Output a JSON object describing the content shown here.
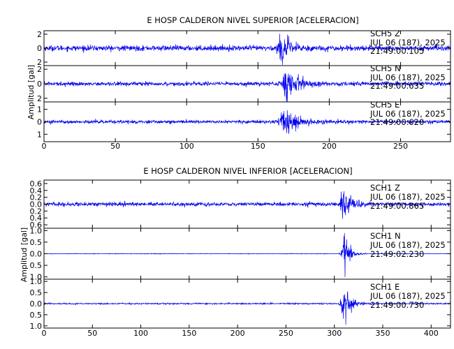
{
  "colors": {
    "trace": "#0000ee",
    "axes": "#000000",
    "background": "#ffffff"
  },
  "chart_data": [
    {
      "type": "line",
      "title": "E HOSP CALDERON NIVEL SUPERIOR [ACELERACION]",
      "ylabel": "Amplitud [gal]",
      "xlim": [
        0,
        285
      ],
      "xticks": [
        "0",
        "50",
        "100",
        "150",
        "200",
        "250"
      ],
      "xtick_values": [
        0,
        50,
        100,
        150,
        200,
        250
      ],
      "grid": false,
      "series": [
        {
          "name": "SCH5 Z",
          "label": [
            "SCH5   Z",
            "JUL 06 (187), 2025",
            "21:49:00.105"
          ],
          "ylim": [
            -2.5,
            2.5
          ],
          "ytick_values": [
            2,
            0,
            -2
          ],
          "yticks": [
            "2",
            "0",
            "2"
          ],
          "noise": 0.35,
          "events": [
            {
              "t": 167,
              "peak": 1.8,
              "width": 6
            }
          ]
        },
        {
          "name": "SCH5 N",
          "label": [
            "SCH5   N",
            "JUL 06 (187), 2025",
            "21:49:00.635"
          ],
          "ylim": [
            -2.5,
            2.5
          ],
          "ytick_values": [
            2,
            0,
            -2
          ],
          "yticks": [
            "2",
            "0",
            "2"
          ],
          "noise": 0.25,
          "events": [
            {
              "t": 170,
              "peak": 2.3,
              "width": 7
            }
          ]
        },
        {
          "name": "SCH5 E",
          "label": [
            "SCH5   E",
            "JUL 06 (187), 2025",
            "21:49:00.620"
          ],
          "ylim": [
            -1.6,
            1.6
          ],
          "ytick_values": [
            1,
            0,
            -1
          ],
          "yticks": [
            "1",
            "0",
            "1"
          ],
          "noise": 0.12,
          "events": [
            {
              "t": 168,
              "peak": 1.3,
              "width": 8
            }
          ]
        }
      ]
    },
    {
      "type": "line",
      "title": "E HOSP CALDERON NIVEL INFERIOR [ACELERACION]",
      "ylabel": "Amplitud [gal]",
      "xlim": [
        0,
        420
      ],
      "xticks": [
        "0",
        "50",
        "100",
        "150",
        "200",
        "250",
        "300",
        "350",
        "400"
      ],
      "xtick_values": [
        0,
        50,
        100,
        150,
        200,
        250,
        300,
        350,
        400
      ],
      "grid": false,
      "series": [
        {
          "name": "SCH1 Z",
          "label": [
            "SCH1   Z",
            "JUL 06 (187), 2025",
            "21:49:00.865"
          ],
          "ylim": [
            -0.7,
            0.7
          ],
          "ytick_values": [
            0.6,
            0.4,
            0.2,
            0,
            -0.2,
            -0.4,
            -0.6
          ],
          "yticks": [
            "0.6",
            "0.4",
            "0.2",
            "0.0",
            "0.2",
            "0.4",
            "0.6"
          ],
          "noise": 0.05,
          "events": [
            {
              "t": 310,
              "peak": 0.6,
              "width": 6
            }
          ]
        },
        {
          "name": "SCH1 N",
          "label": [
            "SCH1   N",
            "JUL 06 (187), 2025",
            "21:49:02.230"
          ],
          "ylim": [
            -1.1,
            1.1
          ],
          "ytick_values": [
            1.0,
            0.5,
            0,
            -0.5,
            -1.0
          ],
          "yticks": [
            "1.0",
            "0.5",
            "0.0",
            "0.5",
            "1.0"
          ],
          "noise": 0.012,
          "events": [
            {
              "t": 311,
              "peak": 0.95,
              "width": 5
            }
          ]
        },
        {
          "name": "SCH1 E",
          "label": [
            "SCH1   E",
            "JUL 06 (187), 2025",
            "21:49:00.730"
          ],
          "ylim": [
            -1.1,
            1.1
          ],
          "ytick_values": [
            1.0,
            0.5,
            0,
            -0.5,
            -1.0
          ],
          "yticks": [
            "1.0",
            "0.5",
            "0.0",
            "0.5",
            "1.0"
          ],
          "noise": 0.03,
          "events": [
            {
              "t": 310,
              "peak": 0.95,
              "width": 6
            }
          ]
        }
      ]
    }
  ]
}
